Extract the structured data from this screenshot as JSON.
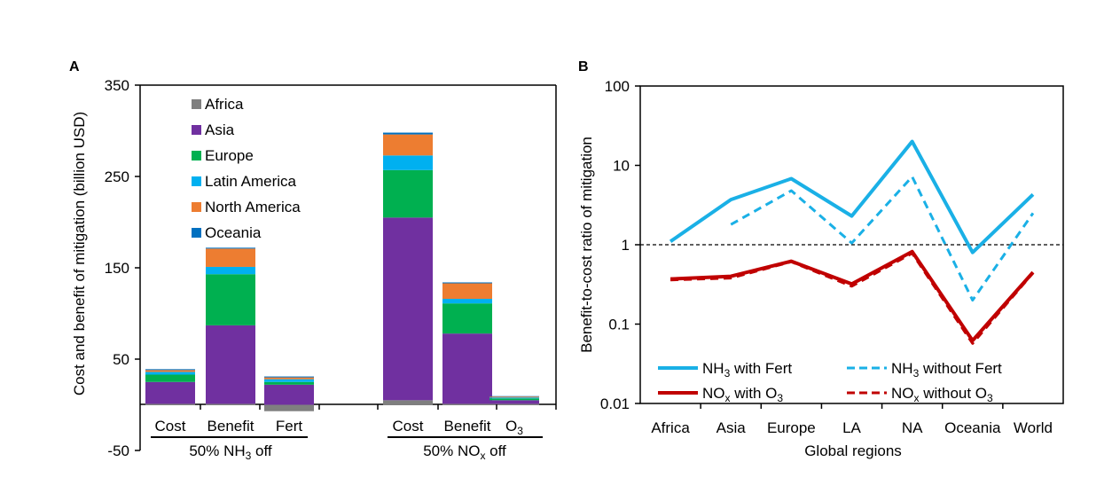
{
  "chart_data": [
    {
      "panel_label": "A",
      "type": "bar",
      "stacked": true,
      "ylabel": "Cost and benefit of mitigation (billion USD)",
      "ylim": [
        -50,
        350
      ],
      "yticks": [
        -50,
        50,
        150,
        250,
        350
      ],
      "legend_position": "top-left",
      "groups": [
        {
          "label_pre": "50% NH",
          "label_sub": "3",
          "label_post": " off"
        },
        {
          "label_pre": "50% NO",
          "label_sub": "x",
          "label_post": " off"
        }
      ],
      "categories": [
        {
          "group": 0,
          "main": "Cost",
          "sub": ""
        },
        {
          "group": 0,
          "main": "Benefit",
          "sub": ""
        },
        {
          "group": 0,
          "main": "Fert",
          "sub": ""
        },
        {
          "group": 1,
          "main": "Cost",
          "sub": ""
        },
        {
          "group": 1,
          "main": "Benefit",
          "sub": ""
        },
        {
          "group": 1,
          "main": "O",
          "sub": "3"
        }
      ],
      "series": [
        {
          "name": "Africa",
          "color": "#7f7f7f",
          "values": [
            1,
            1,
            -7,
            5,
            1,
            1
          ]
        },
        {
          "name": "Asia",
          "color": "#7030a0",
          "values": [
            24,
            86,
            22,
            200,
            77,
            4
          ]
        },
        {
          "name": "Europe",
          "color": "#00b050",
          "values": [
            8,
            56,
            3,
            52,
            33,
            2
          ]
        },
        {
          "name": "Latin America",
          "color": "#00b0f0",
          "values": [
            3,
            8,
            3,
            16,
            5,
            1
          ]
        },
        {
          "name": "North America",
          "color": "#ed7d31",
          "values": [
            2,
            20,
            2,
            23,
            17,
            1
          ]
        },
        {
          "name": "Oceania",
          "color": "#0070c0",
          "values": [
            1,
            1,
            1,
            2,
            1,
            0.5
          ]
        }
      ]
    },
    {
      "panel_label": "B",
      "type": "line",
      "ylabel": "Benefit-to-cost ratio of mitigation",
      "xlabel": "Global regions",
      "y_scale": "log",
      "ylim": [
        0.01,
        100
      ],
      "yticks": [
        "0.01",
        "0.1",
        "1",
        "10",
        "100"
      ],
      "reference_line": 1,
      "categories": [
        "Africa",
        "Asia",
        "Europe",
        "LA",
        "NA",
        "Oceania",
        "World"
      ],
      "legend_position": "bottom",
      "series": [
        {
          "name_pre": "NH",
          "name_sub": "3",
          "name_post": " with Fert",
          "color": "#1ab0e6",
          "dash": "solid",
          "values": [
            1.1,
            3.7,
            6.8,
            2.3,
            20,
            0.8,
            4.3
          ]
        },
        {
          "name_pre": "NH",
          "name_sub": "3",
          "name_post": " without Fert",
          "color": "#1ab0e6",
          "dash": "dashed",
          "values": [
            null,
            1.8,
            4.8,
            1.05,
            7.2,
            0.2,
            2.5
          ]
        },
        {
          "name_pre": "NO",
          "name_sub": "x",
          "name_post": " with O",
          "name_sub2": "3",
          "color": "#c00000",
          "dash": "solid",
          "values": [
            0.37,
            0.4,
            0.62,
            0.32,
            0.82,
            0.062,
            0.45
          ]
        },
        {
          "name_pre": "NO",
          "name_sub": "x",
          "name_post": " without O",
          "name_sub2": "3",
          "color": "#c00000",
          "dash": "dashed",
          "values": [
            0.36,
            0.38,
            0.61,
            0.3,
            0.78,
            0.057,
            0.44
          ]
        }
      ]
    }
  ]
}
